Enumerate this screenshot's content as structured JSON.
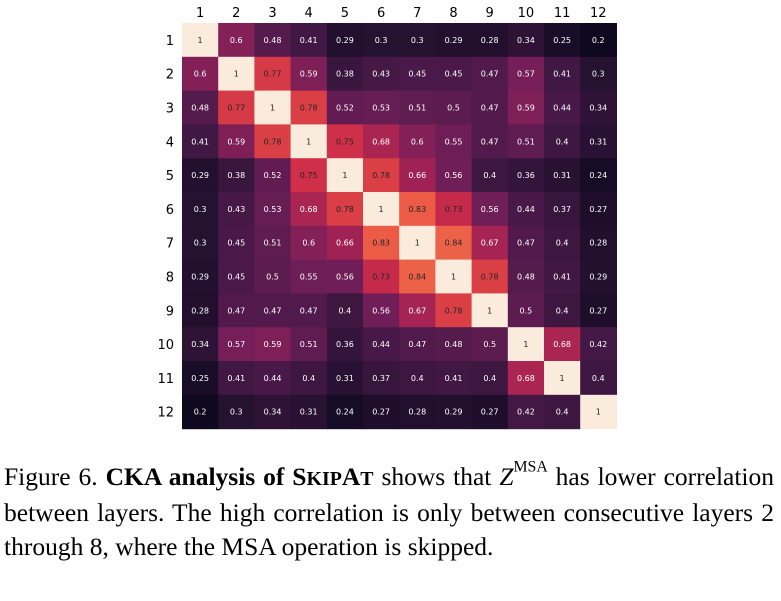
{
  "chart_data": {
    "type": "heatmap",
    "title": "",
    "xlabel": "",
    "ylabel": "",
    "x_labels": [
      "1",
      "2",
      "3",
      "4",
      "5",
      "6",
      "7",
      "8",
      "9",
      "10",
      "11",
      "12"
    ],
    "y_labels": [
      "1",
      "2",
      "3",
      "4",
      "5",
      "6",
      "7",
      "8",
      "9",
      "10",
      "11",
      "12"
    ],
    "x_ticks_position": "top",
    "colormap": "rocket",
    "value_range": [
      0.2,
      1
    ],
    "values": [
      [
        1,
        0.6,
        0.48,
        0.41,
        0.29,
        0.3,
        0.3,
        0.29,
        0.28,
        0.34,
        0.25,
        0.2
      ],
      [
        0.6,
        1,
        0.77,
        0.59,
        0.38,
        0.43,
        0.45,
        0.45,
        0.47,
        0.57,
        0.41,
        0.3
      ],
      [
        0.48,
        0.77,
        1,
        0.78,
        0.52,
        0.53,
        0.51,
        0.5,
        0.47,
        0.59,
        0.44,
        0.34
      ],
      [
        0.41,
        0.59,
        0.78,
        1,
        0.75,
        0.68,
        0.6,
        0.55,
        0.47,
        0.51,
        0.4,
        0.31
      ],
      [
        0.29,
        0.38,
        0.52,
        0.75,
        1,
        0.78,
        0.66,
        0.56,
        0.4,
        0.36,
        0.31,
        0.24
      ],
      [
        0.3,
        0.43,
        0.53,
        0.68,
        0.78,
        1,
        0.83,
        0.73,
        0.56,
        0.44,
        0.37,
        0.27
      ],
      [
        0.3,
        0.45,
        0.51,
        0.6,
        0.66,
        0.83,
        1,
        0.84,
        0.67,
        0.47,
        0.4,
        0.28
      ],
      [
        0.29,
        0.45,
        0.5,
        0.55,
        0.56,
        0.73,
        0.84,
        1,
        0.78,
        0.48,
        0.41,
        0.29
      ],
      [
        0.28,
        0.47,
        0.47,
        0.47,
        0.4,
        0.56,
        0.67,
        0.78,
        1,
        0.5,
        0.4,
        0.27
      ],
      [
        0.34,
        0.57,
        0.59,
        0.51,
        0.36,
        0.44,
        0.47,
        0.48,
        0.5,
        1,
        0.68,
        0.42
      ],
      [
        0.25,
        0.41,
        0.44,
        0.4,
        0.31,
        0.37,
        0.4,
        0.41,
        0.4,
        0.68,
        1,
        0.4
      ],
      [
        0.2,
        0.3,
        0.34,
        0.31,
        0.24,
        0.27,
        0.28,
        0.29,
        0.27,
        0.42,
        0.4,
        1
      ]
    ]
  },
  "caption": {
    "figure_label": "Figure 6.",
    "bold_prefix": "CKA analysis of S",
    "bold_smallcaps": "KIP",
    "bold_tail": "A",
    "bold_smallcaps_2": "T",
    "text_1": " shows that ",
    "math_symbol": "Z",
    "math_superscript": "MSA",
    "text_2": " has lower correlation between layers. The high correlation is only between consecutive layers 2 through 8, where the MSA operation is skipped."
  }
}
